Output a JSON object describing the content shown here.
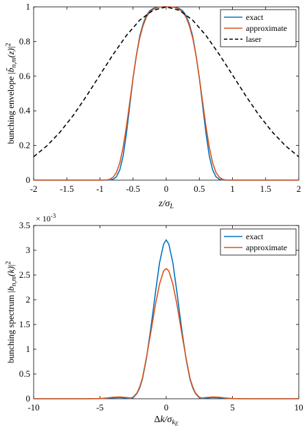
{
  "colors": {
    "exact": "#0072BD",
    "approximate": "#D95319",
    "laser": "#000000"
  },
  "chart_data": [
    {
      "type": "line",
      "xlabel": "z/σL",
      "ylabel": "bunching envelope |b̃n,m(z)|²",
      "xlim": [
        -2,
        2
      ],
      "ylim": [
        0,
        1
      ],
      "xticks": [
        -2,
        -1.5,
        -1,
        -0.5,
        0,
        0.5,
        1,
        1.5,
        2
      ],
      "xtick_labels": [
        "-2",
        "-1.5",
        "-1",
        "-0.5",
        "0",
        "0.5",
        "1",
        "1.5",
        "2"
      ],
      "yticks": [
        0,
        0.2,
        0.4,
        0.6,
        0.8,
        1
      ],
      "ytick_labels": [
        "0",
        "0.2",
        "0.4",
        "0.6",
        "0.8",
        "1"
      ],
      "legend_position": "top-right",
      "series": [
        {
          "name": "exact",
          "color_key": "exact",
          "dashed": false,
          "x": [
            -2,
            -1,
            -0.9,
            -0.85,
            -0.8,
            -0.75,
            -0.7,
            -0.65,
            -0.6,
            -0.55,
            -0.5,
            -0.45,
            -0.4,
            -0.35,
            -0.3,
            -0.25,
            -0.2,
            -0.15,
            -0.1,
            -0.05,
            0,
            0.05,
            0.1,
            0.15,
            0.2,
            0.25,
            0.3,
            0.35,
            0.4,
            0.45,
            0.5,
            0.55,
            0.6,
            0.65,
            0.7,
            0.75,
            0.8,
            0.85,
            0.9,
            1,
            2
          ],
          "y": [
            0,
            0,
            0,
            0.001,
            0.005,
            0.02,
            0.06,
            0.14,
            0.27,
            0.43,
            0.59,
            0.72,
            0.83,
            0.9,
            0.95,
            0.977,
            0.99,
            0.997,
            0.999,
            1,
            1,
            1,
            0.999,
            0.997,
            0.99,
            0.977,
            0.95,
            0.9,
            0.83,
            0.72,
            0.59,
            0.43,
            0.27,
            0.14,
            0.06,
            0.02,
            0.005,
            0.001,
            0,
            0,
            0
          ]
        },
        {
          "name": "approximate",
          "color_key": "approximate",
          "dashed": false,
          "x": [
            -2,
            -1,
            -0.9,
            -0.85,
            -0.8,
            -0.75,
            -0.7,
            -0.65,
            -0.6,
            -0.55,
            -0.5,
            -0.45,
            -0.4,
            -0.35,
            -0.3,
            -0.25,
            -0.2,
            -0.15,
            -0.1,
            -0.05,
            0,
            0.05,
            0.1,
            0.15,
            0.2,
            0.25,
            0.3,
            0.35,
            0.4,
            0.45,
            0.5,
            0.55,
            0.6,
            0.65,
            0.7,
            0.75,
            0.8,
            0.85,
            0.9,
            1,
            2
          ],
          "y": [
            0,
            0,
            0.001,
            0.005,
            0.017,
            0.045,
            0.1,
            0.19,
            0.31,
            0.45,
            0.59,
            0.72,
            0.82,
            0.89,
            0.94,
            0.97,
            0.985,
            0.994,
            0.998,
            1,
            1,
            1,
            0.998,
            0.994,
            0.985,
            0.97,
            0.94,
            0.89,
            0.82,
            0.72,
            0.59,
            0.45,
            0.31,
            0.19,
            0.1,
            0.045,
            0.017,
            0.005,
            0.001,
            0,
            0
          ]
        },
        {
          "name": "laser",
          "color_key": "laser",
          "dashed": true,
          "x": [
            -2,
            -1.8,
            -1.6,
            -1.4,
            -1.2,
            -1,
            -0.8,
            -0.6,
            -0.4,
            -0.2,
            0,
            0.2,
            0.4,
            0.6,
            0.8,
            1,
            1.2,
            1.4,
            1.6,
            1.8,
            2
          ],
          "y": [
            0.135,
            0.198,
            0.278,
            0.375,
            0.487,
            0.607,
            0.726,
            0.835,
            0.923,
            0.98,
            1,
            0.98,
            0.923,
            0.835,
            0.726,
            0.607,
            0.487,
            0.375,
            0.278,
            0.198,
            0.135
          ]
        }
      ]
    },
    {
      "type": "line",
      "xlabel": "Δk/σkE",
      "ylabel": "bunching spectrum |bn,m(k)|²",
      "xlim": [
        -10,
        10
      ],
      "ylim": [
        0,
        3.5
      ],
      "y_exponent_label": "× 10",
      "y_exponent_power": "-3",
      "xticks": [
        -10,
        -5,
        0,
        5,
        10
      ],
      "xtick_labels": [
        "-10",
        "-5",
        "0",
        "5",
        "10"
      ],
      "yticks": [
        0,
        0.5,
        1,
        1.5,
        2,
        2.5,
        3,
        3.5
      ],
      "ytick_labels": [
        "0",
        "0.5",
        "1",
        "1.5",
        "2",
        "2.5",
        "3",
        "3.5"
      ],
      "legend_position": "top-right",
      "series": [
        {
          "name": "exact",
          "color_key": "exact",
          "dashed": false,
          "x": [
            -10,
            -6,
            -5,
            -4.5,
            -4,
            -3.5,
            -3,
            -2.7,
            -2.5,
            -2.2,
            -2,
            -1.8,
            -1.5,
            -1.2,
            -1,
            -0.8,
            -0.5,
            -0.2,
            0,
            0.2,
            0.5,
            0.8,
            1,
            1.2,
            1.5,
            1.8,
            2,
            2.2,
            2.5,
            2.7,
            3,
            3.5,
            4,
            4.5,
            5,
            6,
            10
          ],
          "y": [
            0,
            0,
            0.002,
            0.01,
            0.02,
            0.025,
            0.015,
            0.003,
            0.02,
            0.11,
            0.22,
            0.39,
            0.8,
            1.35,
            1.75,
            2.17,
            2.75,
            3.12,
            3.21,
            3.12,
            2.75,
            2.17,
            1.75,
            1.35,
            0.8,
            0.39,
            0.22,
            0.11,
            0.02,
            0.003,
            0.015,
            0.025,
            0.02,
            0.01,
            0.002,
            0,
            0
          ]
        },
        {
          "name": "approximate",
          "color_key": "approximate",
          "dashed": false,
          "x": [
            -10,
            -6,
            -5,
            -4.5,
            -4,
            -3.5,
            -3,
            -2.7,
            -2.5,
            -2.2,
            -2,
            -1.8,
            -1.5,
            -1.2,
            -1,
            -0.8,
            -0.5,
            -0.2,
            0,
            0.2,
            0.5,
            0.8,
            1,
            1.2,
            1.5,
            1.8,
            2,
            2.2,
            2.5,
            2.7,
            3,
            3.5,
            4,
            4.5,
            5,
            6,
            10
          ],
          "y": [
            0,
            0,
            0.004,
            0.015,
            0.03,
            0.035,
            0.025,
            0.015,
            0.03,
            0.12,
            0.24,
            0.41,
            0.82,
            1.28,
            1.6,
            1.92,
            2.32,
            2.58,
            2.63,
            2.58,
            2.32,
            1.92,
            1.6,
            1.28,
            0.82,
            0.41,
            0.24,
            0.12,
            0.03,
            0.015,
            0.025,
            0.035,
            0.03,
            0.015,
            0.004,
            0,
            0
          ]
        }
      ]
    }
  ]
}
